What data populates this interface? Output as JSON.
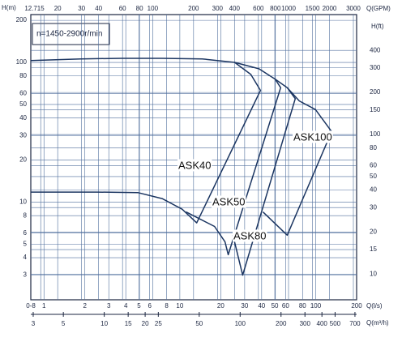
{
  "chart_data": {
    "type": "line",
    "annotation": "n=1450-2900r/min",
    "xlabel": "Q(l/s)",
    "ylabel": "H(m)",
    "y2label": "H(ft)",
    "x2label": "Q(GPM)",
    "x3label": "Q(m³/h)",
    "xlog": true,
    "ylog": true,
    "grid": true,
    "xlim": [
      0.8,
      200
    ],
    "ylim": [
      2,
      220
    ],
    "xticks": [
      {
        "value": 0.8,
        "label": "0-8"
      },
      1,
      2,
      3,
      4,
      5,
      6,
      8,
      10,
      20,
      30,
      40,
      50,
      60,
      80,
      100,
      200
    ],
    "yticks": [
      3,
      4,
      5,
      6,
      8,
      10,
      20,
      30,
      40,
      50,
      60,
      80,
      100,
      200
    ],
    "x2lim": [
      12.68,
      3170
    ],
    "x2ticks": [
      12.7,
      15,
      20,
      30,
      40,
      60,
      80,
      100,
      200,
      300,
      400,
      600,
      800,
      1000,
      1500,
      2000,
      3000
    ],
    "x3lim": [
      2.88,
      720
    ],
    "x3ticks": [
      3,
      5,
      10,
      15,
      20,
      25,
      50,
      100,
      200,
      300,
      400,
      500,
      700
    ],
    "y2lim": [
      6.56,
      722
    ],
    "y2ticks": [
      10,
      15,
      20,
      30,
      40,
      50,
      60,
      80,
      100,
      150,
      200,
      300,
      400
    ],
    "series": [
      {
        "name": "ASK40",
        "color": "#1b3561",
        "x": [
          0.8,
          1.87,
          3.71,
          7.37,
          14.6,
          25.3,
          33.3,
          39.2,
          13.3,
          10.4,
          7.4,
          4.9,
          2.46,
          0.8
        ],
        "values": [
          103,
          106,
          107,
          107,
          106,
          100,
          82,
          63,
          7.1,
          8.9,
          10.6,
          11.7,
          11.8,
          11.8
        ]
      },
      {
        "name": "ASK50",
        "color": "#1b3561",
        "x": [
          25.3,
          38.2,
          50.2,
          55.2,
          22.7,
          21.5,
          18.0,
          11.1
        ],
        "values": [
          100,
          90,
          76,
          66,
          4.2,
          5.2,
          6.7,
          8.5
        ]
      },
      {
        "name": "ASK80",
        "color": "#1b3561",
        "x": [
          50.2,
          61.7,
          70.7,
          29.0,
          24.6
        ],
        "values": [
          76,
          66,
          55,
          3.0,
          5.8
        ]
      },
      {
        "name": "ASK100",
        "color": "#1b3561",
        "x": [
          61.7,
          75.7,
          99.6,
          131,
          61.7,
          40.9
        ],
        "values": [
          66,
          53,
          46,
          32,
          5.8,
          8.5
        ]
      }
    ]
  }
}
